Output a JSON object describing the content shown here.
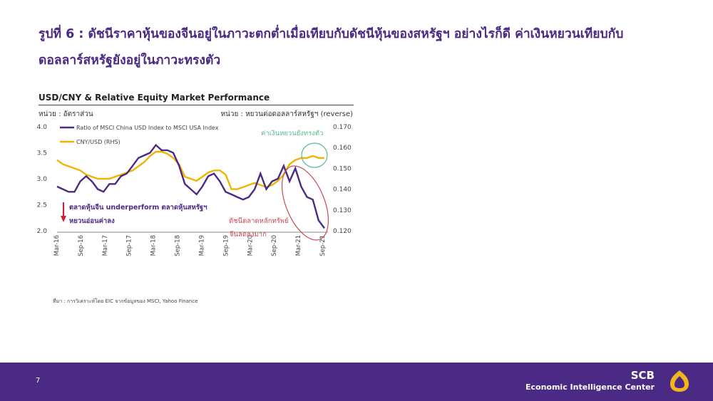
{
  "heading": {
    "line1": "รูปที่ 6 : ดัชนีราคาหุ้นของจีนอยู่ในภาวะตกต่ำเมื่อเทียบกับดัชนีหุ้นของสหรัฐฯ อย่างไรก็ดี ค่าเงินหยวนเทียบกับ",
    "line2": "ดอลลาร์สหรัฐยังอยู่ในภาวะทรงตัว"
  },
  "source": "ที่มา : การวิเคราะห์โดย EIC จากข้อมูลของ MSCI, Yahoo Finance",
  "footer": {
    "page_number": "7",
    "brand_name": "SCB",
    "brand_sub": "Economic Intelligence Center",
    "background": "#4b2a85"
  },
  "chart_data": {
    "type": "line",
    "title": "USD/CNY & Relative Equity Market Performance",
    "ylabel": "หน่วย : อัตราส่วน",
    "y2label": "หน่วย : หยวนต่อดอลลาร์สหรัฐฯ (reverse)",
    "ylim": [
      2.0,
      4.0
    ],
    "y2lim": [
      0.12,
      0.17
    ],
    "y2_reversed_note": "reverse",
    "yticks": [
      "4.0",
      "3.5",
      "3.0",
      "2.5",
      "2.0"
    ],
    "y2ticks": [
      "0.170",
      "0.160",
      "0.150",
      "0.140",
      "0.130",
      "0.120"
    ],
    "xticks": [
      "Mar-16",
      "Sep-16",
      "Mar-17",
      "Sep-17",
      "Mar-18",
      "Sep-18",
      "Mar-19",
      "Sep-19",
      "Mar-20",
      "Sep-20",
      "Mar-21",
      "Sep-21"
    ],
    "grid": false,
    "legend_position": "top-left",
    "series": [
      {
        "name": "Ratio of MSCI China USD Index to MSCI USA Index",
        "color": "#4b2a85",
        "axis": "left",
        "values": [
          2.85,
          2.8,
          2.75,
          2.75,
          2.95,
          3.05,
          2.95,
          2.8,
          2.75,
          2.9,
          2.9,
          3.05,
          3.1,
          3.25,
          3.4,
          3.45,
          3.5,
          3.65,
          3.55,
          3.55,
          3.5,
          3.25,
          2.9,
          2.8,
          2.7,
          2.85,
          3.05,
          3.1,
          2.95,
          2.75,
          2.7,
          2.65,
          2.6,
          2.65,
          2.8,
          3.1,
          2.8,
          2.95,
          3.0,
          3.25,
          2.95,
          3.2,
          2.85,
          2.65,
          2.6,
          2.2,
          2.05
        ]
      },
      {
        "name": "CNY/USD (RHS)",
        "color": "#f0b400",
        "axis": "right",
        "values": [
          0.154,
          0.152,
          0.151,
          0.15,
          0.149,
          0.147,
          0.146,
          0.145,
          0.145,
          0.145,
          0.146,
          0.147,
          0.148,
          0.149,
          0.151,
          0.153,
          0.156,
          0.158,
          0.158,
          0.157,
          0.155,
          0.152,
          0.146,
          0.145,
          0.144,
          0.146,
          0.148,
          0.149,
          0.149,
          0.147,
          0.14,
          0.14,
          0.141,
          0.142,
          0.143,
          0.142,
          0.141,
          0.142,
          0.144,
          0.147,
          0.152,
          0.154,
          0.155,
          0.155,
          0.156,
          0.155,
          0.155
        ]
      }
    ],
    "annotations": {
      "yuan_stable": "ค่าเงินหยวนยังทรงตัว",
      "underperform": "ตลาดหุ้นจีน underperform ตลาดหุ้นสหรัฐฯ",
      "yuan_weak": "หยวนอ่อนค่าลง",
      "china_index": "ดัชนีตลาดหลักทรัพย์",
      "china_drop": "จีนลดลงมาก"
    },
    "annotation_colors": {
      "green": "#5cb88a",
      "red": "#c94a55",
      "arrow": "#d31f2b",
      "label": "#4b2a85"
    }
  }
}
